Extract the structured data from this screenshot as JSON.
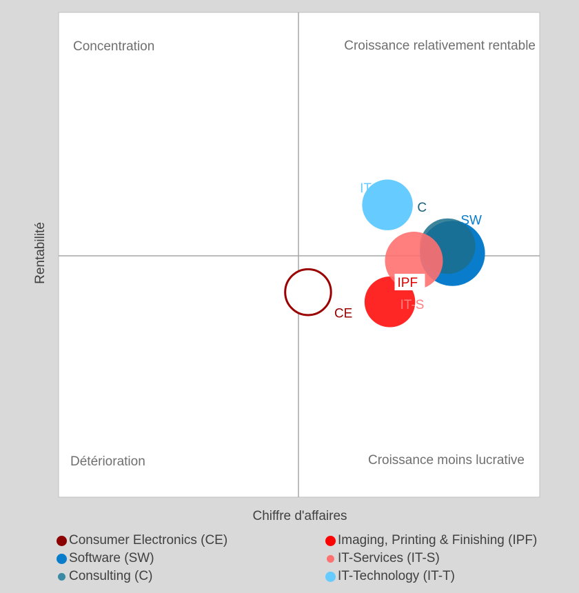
{
  "chart_data": {
    "type": "bubble",
    "xlabel": "Chiffre d'affaires",
    "ylabel": "Rentabilité",
    "xlim": [
      -1,
      1
    ],
    "ylim": [
      -1,
      1
    ],
    "quadrants": {
      "top_left": "Concentration",
      "top_right": "Croissance relativement rentable",
      "bottom_left": "Détérioration",
      "bottom_right": "Croissance moins lucrative"
    },
    "series": [
      {
        "id": "ce",
        "name": "Consumer Electronics (CE)",
        "label": "CE",
        "x": 0.04,
        "y": -0.15,
        "size": 0.19,
        "color": "#9b0000",
        "filled": false,
        "opacity": 1
      },
      {
        "id": "its",
        "name": "IT-Services (IT-S)",
        "label": "IT-S",
        "x": 0.38,
        "y": -0.19,
        "size": 0.21,
        "color": "#ff0000",
        "filled": true,
        "opacity": 0.85
      },
      {
        "id": "itt",
        "name": "IT-Technology (IT-T)",
        "label": "IT-T",
        "x": 0.37,
        "y": 0.21,
        "size": 0.21,
        "color": "#66ccff",
        "filled": true,
        "opacity": 1
      },
      {
        "id": "sw",
        "name": "Software (SW)",
        "label": "SW",
        "x": 0.64,
        "y": 0.01,
        "size": 0.27,
        "color": "#0a7ccc",
        "filled": true,
        "opacity": 1
      },
      {
        "id": "c",
        "name": "Consulting (C)",
        "label": "C",
        "x": 0.62,
        "y": 0.04,
        "size": 0.23,
        "color": "#1b6e8c",
        "filled": true,
        "opacity": 0.85
      },
      {
        "id": "ipf",
        "name": "Imaging, Printing & Finishing (IPF)",
        "label": "IPF",
        "x": 0.48,
        "y": -0.02,
        "size": 0.24,
        "color": "#ff7070",
        "filled": true,
        "opacity": 0.9
      }
    ],
    "legend": {
      "position": "bottom",
      "entries": [
        {
          "name": "Consumer Electronics (CE)",
          "color": "#8b0000",
          "marker_size": "large"
        },
        {
          "name": "Imaging, Printing & Finishing (IPF)",
          "color": "#ff0000",
          "marker_size": "large"
        },
        {
          "name": "Software (SW)",
          "color": "#0a7ccc",
          "marker_size": "large"
        },
        {
          "name": "IT-Services (IT-S)",
          "color": "#ff7070",
          "marker_size": "small"
        },
        {
          "name": "Consulting (C)",
          "color": "#3a8aa3",
          "marker_size": "small"
        },
        {
          "name": "IT-Technology (IT-T)",
          "color": "#66ccff",
          "marker_size": "large"
        }
      ]
    },
    "grid": false
  }
}
